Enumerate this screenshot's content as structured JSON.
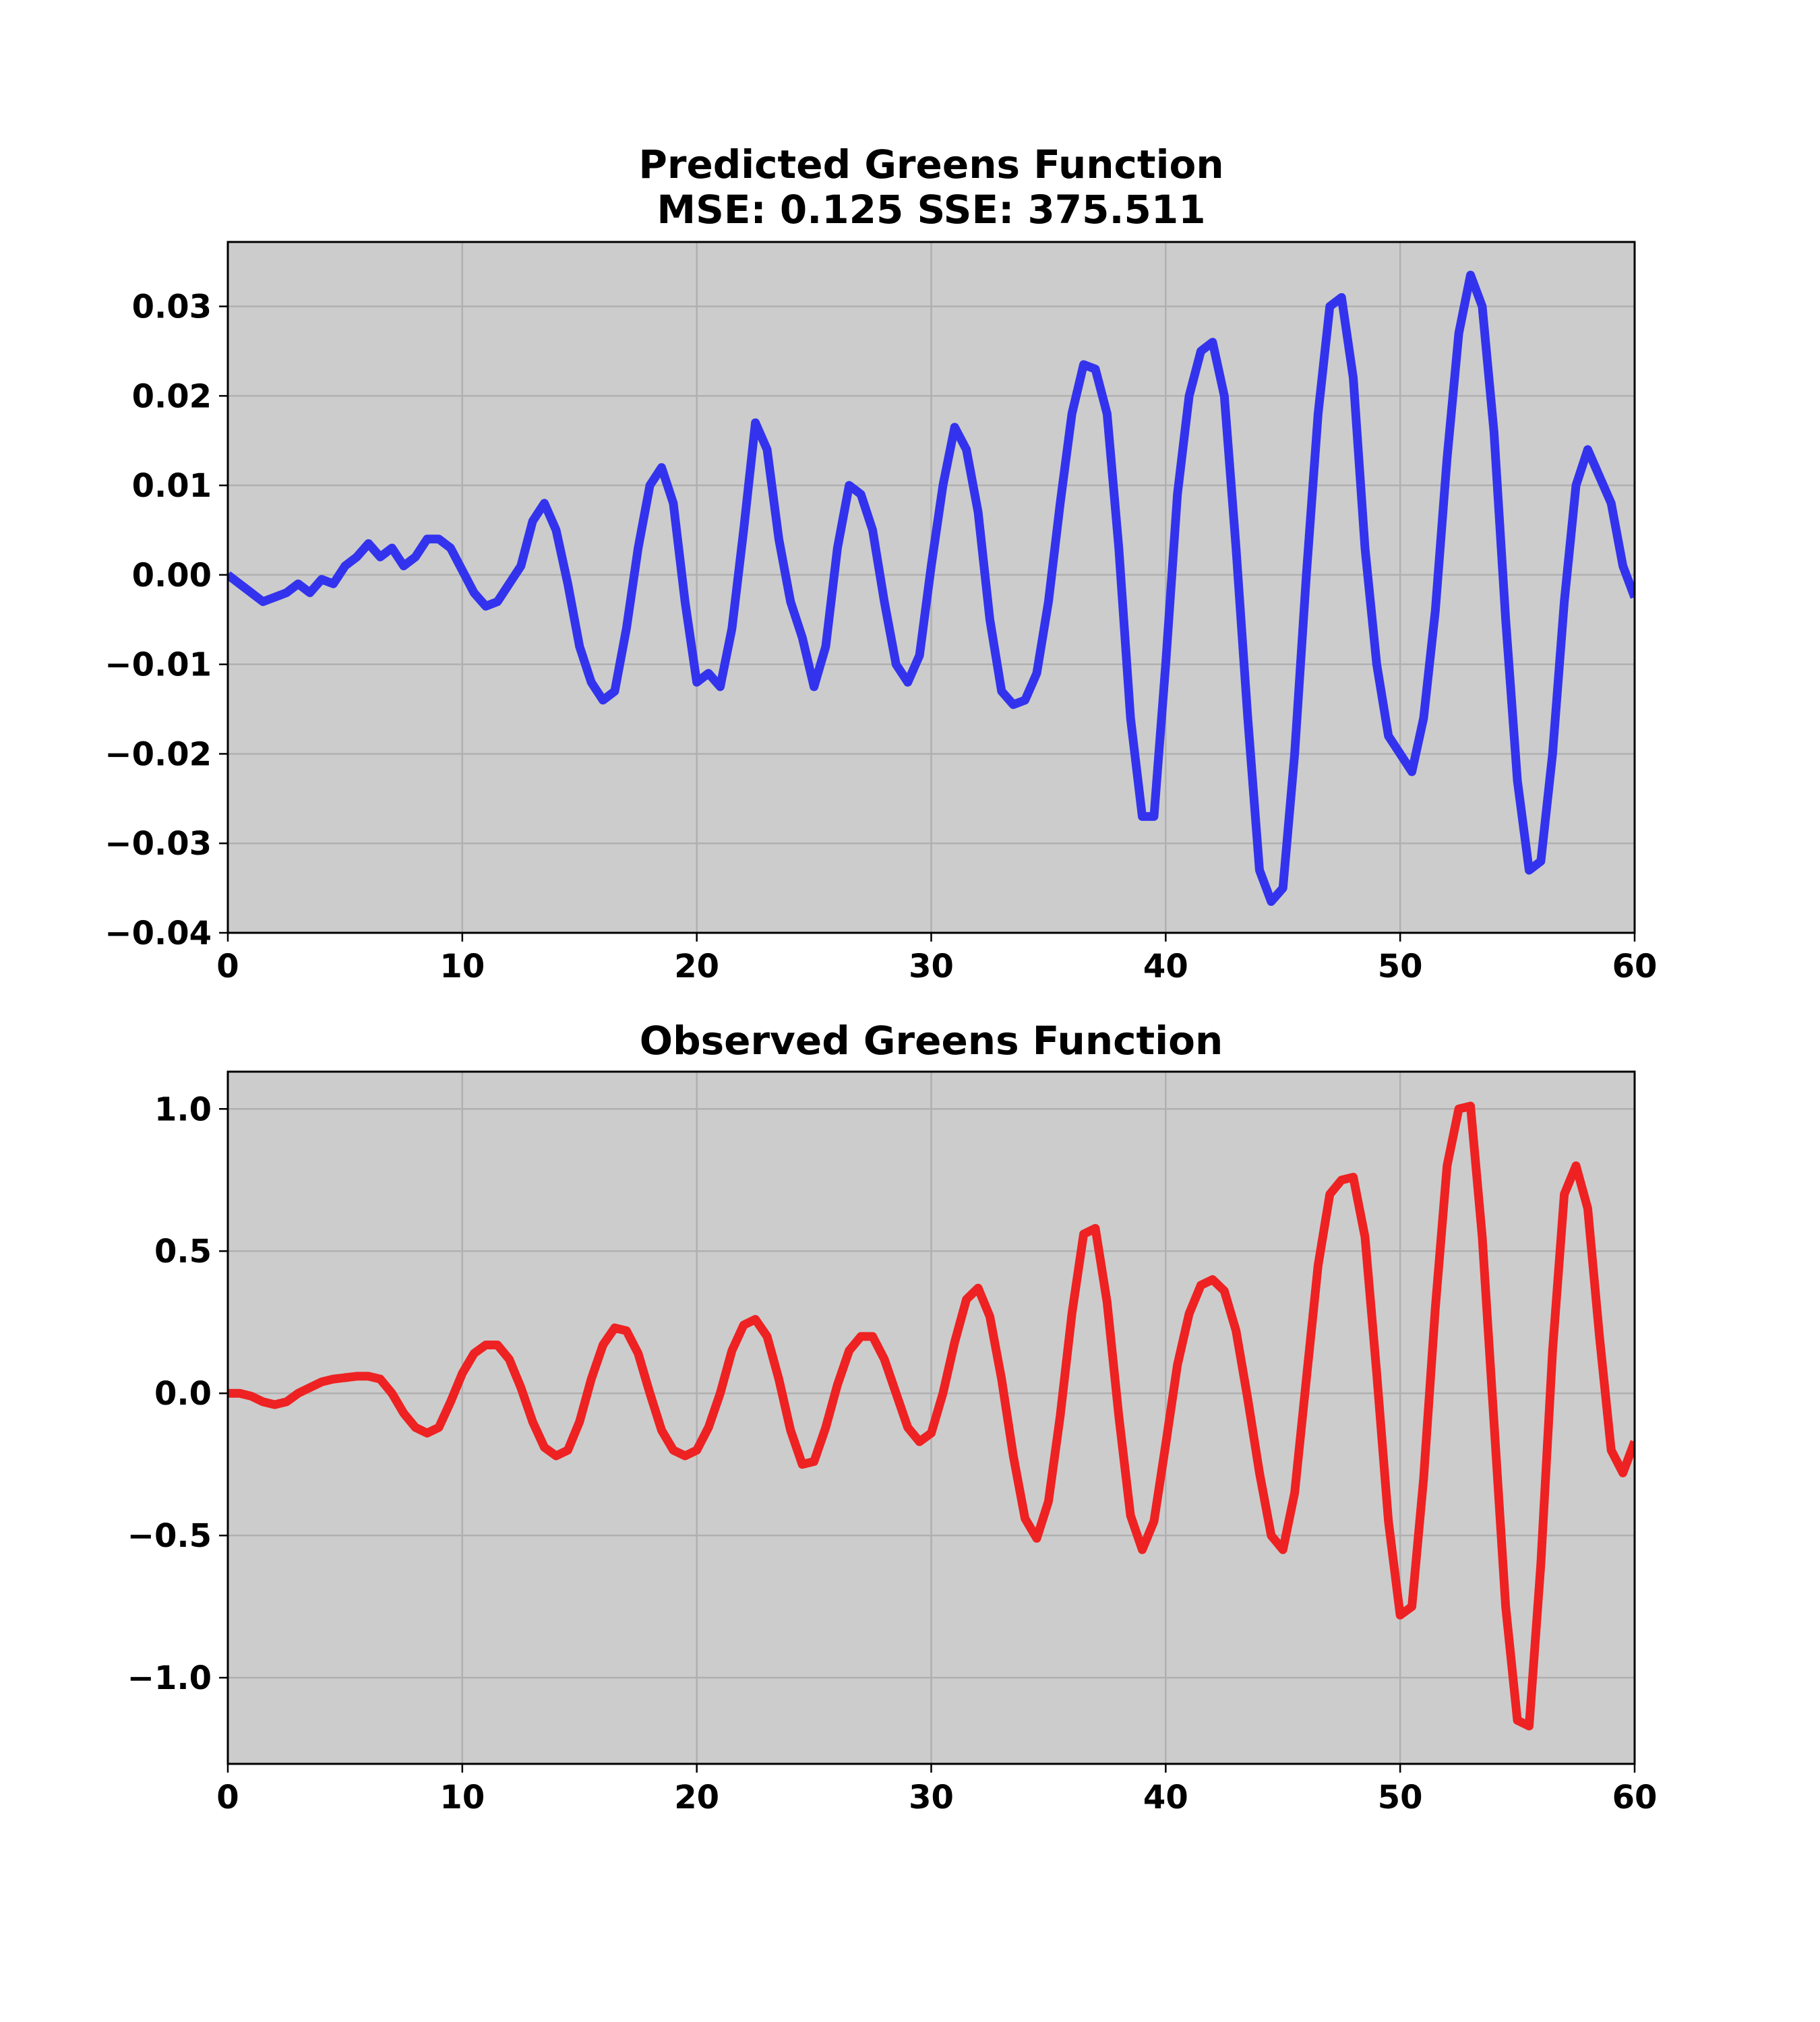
{
  "chart_data": [
    {
      "type": "line",
      "title": "Predicted Greens Function",
      "subtitle": "MSE: 0.125 SSE: 375.511",
      "color": "#3333ee",
      "background": "#cccccc",
      "grid": true,
      "x": [
        0,
        0.5,
        1,
        1.5,
        2,
        2.5,
        3,
        3.5,
        4,
        4.5,
        5,
        5.5,
        6,
        6.5,
        7,
        7.5,
        8,
        8.5,
        9,
        9.5,
        10,
        10.5,
        11,
        11.5,
        12,
        12.5,
        13,
        13.5,
        14,
        14.5,
        15,
        15.5,
        16,
        16.5,
        17,
        17.5,
        18,
        18.5,
        19,
        19.5,
        20,
        20.5,
        21,
        21.5,
        22,
        22.5,
        23,
        23.5,
        24,
        24.5,
        25,
        25.5,
        26,
        26.5,
        27,
        27.5,
        28,
        28.5,
        29,
        29.5,
        30,
        30.5,
        31,
        31.5,
        32,
        32.5,
        33,
        33.5,
        34,
        34.5,
        35,
        35.5,
        36,
        36.5,
        37,
        37.5,
        38,
        38.5,
        39,
        39.5,
        40,
        40.5,
        41,
        41.5,
        42,
        42.5,
        43,
        43.5,
        44,
        44.5,
        45,
        45.5,
        46,
        46.5,
        47,
        47.5,
        48,
        48.5,
        49,
        49.5,
        50,
        50.5,
        51,
        51.5,
        52,
        52.5,
        53,
        53.5,
        54,
        54.5,
        55,
        55.5,
        56,
        56.5,
        57,
        57.5,
        58,
        58.5,
        59,
        59.5,
        60
      ],
      "values": [
        0,
        -0.001,
        -0.002,
        -0.003,
        -0.0025,
        -0.002,
        -0.001,
        -0.002,
        -0.0005,
        -0.001,
        0.001,
        0.002,
        0.0035,
        0.002,
        0.003,
        0.001,
        0.002,
        0.004,
        0.004,
        0.003,
        0.0005,
        -0.002,
        -0.0035,
        -0.003,
        -0.001,
        0.001,
        0.006,
        0.008,
        0.005,
        -0.001,
        -0.008,
        -0.012,
        -0.014,
        -0.013,
        -0.006,
        0.003,
        0.01,
        0.012,
        0.008,
        -0.003,
        -0.012,
        -0.011,
        -0.0125,
        -0.006,
        0.005,
        0.017,
        0.014,
        0.004,
        -0.003,
        -0.007,
        -0.0125,
        -0.008,
        0.003,
        0.01,
        0.009,
        0.005,
        -0.003,
        -0.01,
        -0.012,
        -0.009,
        0.001,
        0.01,
        0.0165,
        0.014,
        0.007,
        -0.005,
        -0.013,
        -0.0145,
        -0.014,
        -0.011,
        -0.003,
        0.008,
        0.018,
        0.0235,
        0.023,
        0.018,
        0.003,
        -0.016,
        -0.027,
        -0.027,
        -0.01,
        0.009,
        0.02,
        0.025,
        0.026,
        0.02,
        0.003,
        -0.016,
        -0.033,
        -0.0365,
        -0.035,
        -0.02,
        0,
        0.018,
        0.03,
        0.031,
        0.022,
        0.003,
        -0.01,
        -0.018,
        -0.02,
        -0.022,
        -0.016,
        -0.004,
        0.013,
        0.027,
        0.0335,
        0.03,
        0.016,
        -0.005,
        -0.023,
        -0.033,
        -0.032,
        -0.02,
        -0.003,
        0.01,
        0.014,
        0.011,
        0.008,
        0.001,
        -0.0025
      ],
      "xlim": [
        0,
        60
      ],
      "xticks": [
        0,
        10,
        20,
        30,
        40,
        50,
        60
      ],
      "ylim": [
        -0.04,
        0.0372
      ],
      "yticks": [
        {
          "value": -0.04,
          "label": "−0.04"
        },
        {
          "value": -0.03,
          "label": "−0.03"
        },
        {
          "value": -0.02,
          "label": "−0.02"
        },
        {
          "value": -0.01,
          "label": "−0.01"
        },
        {
          "value": 0,
          "label": "0.00"
        },
        0.01,
        0.02,
        0.03
      ]
    },
    {
      "type": "line",
      "title": "Observed Greens Function",
      "color": "#ee2222",
      "background": "#cccccc",
      "grid": true,
      "x": [
        0,
        0.5,
        1,
        1.5,
        2,
        2.5,
        3,
        3.5,
        4,
        4.5,
        5,
        5.5,
        6,
        6.5,
        7,
        7.5,
        8,
        8.5,
        9,
        9.5,
        10,
        10.5,
        11,
        11.5,
        12,
        12.5,
        13,
        13.5,
        14,
        14.5,
        15,
        15.5,
        16,
        16.5,
        17,
        17.5,
        18,
        18.5,
        19,
        19.5,
        20,
        20.5,
        21,
        21.5,
        22,
        22.5,
        23,
        23.5,
        24,
        24.5,
        25,
        25.5,
        26,
        26.5,
        27,
        27.5,
        28,
        28.5,
        29,
        29.5,
        30,
        30.5,
        31,
        31.5,
        32,
        32.5,
        33,
        33.5,
        34,
        34.5,
        35,
        35.5,
        36,
        36.5,
        37,
        37.5,
        38,
        38.5,
        39,
        39.5,
        40,
        40.5,
        41,
        41.5,
        42,
        42.5,
        43,
        43.5,
        44,
        44.5,
        45,
        45.5,
        46,
        46.5,
        47,
        47.5,
        48,
        48.5,
        49,
        49.5,
        50,
        50.5,
        51,
        51.5,
        52,
        52.5,
        53,
        53.5,
        54,
        54.5,
        55,
        55.5,
        56,
        56.5,
        57,
        57.5,
        58,
        58.5,
        59,
        59.5,
        60
      ],
      "values": [
        0,
        0,
        -0.01,
        -0.03,
        -0.04,
        -0.03,
        0,
        0.02,
        0.04,
        0.05,
        0.055,
        0.06,
        0.06,
        0.05,
        0,
        -0.07,
        -0.12,
        -0.14,
        -0.12,
        -0.03,
        0.07,
        0.14,
        0.17,
        0.17,
        0.12,
        0.02,
        -0.1,
        -0.19,
        -0.22,
        -0.2,
        -0.1,
        0.05,
        0.17,
        0.23,
        0.22,
        0.14,
        0,
        -0.13,
        -0.2,
        -0.22,
        -0.2,
        -0.12,
        0,
        0.15,
        0.24,
        0.26,
        0.2,
        0.05,
        -0.13,
        -0.25,
        -0.24,
        -0.12,
        0.03,
        0.15,
        0.2,
        0.2,
        0.12,
        0,
        -0.12,
        -0.17,
        -0.14,
        0,
        0.18,
        0.33,
        0.37,
        0.27,
        0.05,
        -0.22,
        -0.44,
        -0.51,
        -0.38,
        -0.08,
        0.28,
        0.56,
        0.58,
        0.32,
        -0.08,
        -0.43,
        -0.55,
        -0.45,
        -0.18,
        0.1,
        0.28,
        0.38,
        0.4,
        0.36,
        0.22,
        -0.02,
        -0.28,
        -0.5,
        -0.55,
        -0.35,
        0.05,
        0.45,
        0.7,
        0.75,
        0.76,
        0.55,
        0.07,
        -0.45,
        -0.78,
        -0.75,
        -0.3,
        0.3,
        0.8,
        1,
        1.01,
        0.55,
        -0.1,
        -0.75,
        -1.15,
        -1.17,
        -0.6,
        0.15,
        0.7,
        0.8,
        0.65,
        0.2,
        -0.2,
        -0.28,
        -0.17
      ],
      "xlim": [
        0,
        60
      ],
      "xticks": [
        0,
        10,
        20,
        30,
        40,
        50,
        60
      ],
      "ylim": [
        -1.303,
        1.131
      ],
      "yticks": [
        {
          "value": -1,
          "label": "−1.0"
        },
        {
          "value": -0.5,
          "label": "−0.5"
        },
        {
          "value": 0,
          "label": "0.0"
        },
        0.5,
        {
          "value": 1,
          "label": "1.0"
        }
      ]
    }
  ]
}
